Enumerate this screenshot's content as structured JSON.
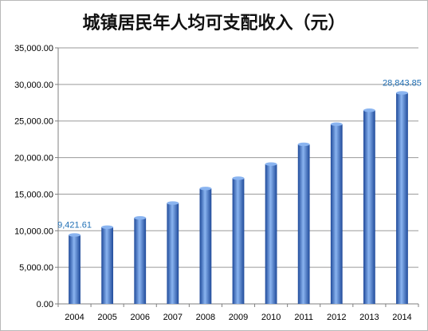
{
  "chart_data": {
    "type": "bar",
    "title": "城镇居民年人均可支配收入（元）",
    "xlabel": "",
    "ylabel": "",
    "categories": [
      "2004",
      "2005",
      "2006",
      "2007",
      "2008",
      "2009",
      "2010",
      "2011",
      "2012",
      "2013",
      "2014"
    ],
    "values": [
      9421.61,
      10493.0,
      11759.5,
      13785.8,
      15780.8,
      17174.7,
      19109.4,
      21809.8,
      24564.7,
      26467.0,
      28843.85
    ],
    "ylim": [
      0,
      35000
    ],
    "yticks": [
      "0.00",
      "5,000.00",
      "10,000.00",
      "15,000.00",
      "20,000.00",
      "25,000.00",
      "30,000.00",
      "35,000.00"
    ],
    "data_labels": [
      {
        "category": "2004",
        "text": "9,421.61"
      },
      {
        "category": "2014",
        "text": "28,843.85"
      }
    ],
    "grid": "horizontal",
    "legend": "none",
    "colors": {
      "bar": "#4a7fd4",
      "bar_dark": "#1f4a9a",
      "bar_light": "#8ab4f0",
      "data_label": "#1f6fb5",
      "grid": "#9a9a9a",
      "axis": "#7f7f7f"
    }
  }
}
